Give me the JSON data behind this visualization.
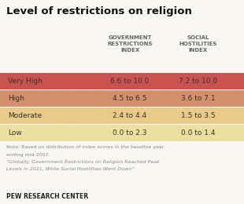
{
  "title": "Level of restrictions on religion",
  "col1_header": "GOVERNMENT\nRESTRICTIONS\nINDEX",
  "col2_header": "SOCIAL\nHOSTILITIES\nINDEX",
  "rows": [
    {
      "label": "Very High",
      "gov": "6.6 to 10.0",
      "soc": "7.2 to 10.0",
      "color": "#c9534e"
    },
    {
      "label": "High",
      "gov": "4.5 to 6.5",
      "soc": "3.6 to 7.1",
      "color": "#d4906a"
    },
    {
      "label": "Moderate",
      "gov": "2.4 to 4.4",
      "soc": "1.5 to 3.5",
      "color": "#e8cB88"
    },
    {
      "label": "Low",
      "gov": "0.0 to 2.3",
      "soc": "0.0 to 1.4",
      "color": "#eddfa0"
    }
  ],
  "note_lines": [
    "Note: Based on distribution of index scores in the baseline year,",
    "ending mid-2007.",
    "“Globally, Government Restrictions on Religion Reached Peak",
    "Levels in 2021, While Social Hostilities Went Down”"
  ],
  "footer": "PEW RESEARCH CENTER",
  "bg_color": "#f9f7f2",
  "header_text_color": "#666666",
  "row_text_color": "#333333",
  "note_color": "#888888",
  "footer_color": "#222222"
}
